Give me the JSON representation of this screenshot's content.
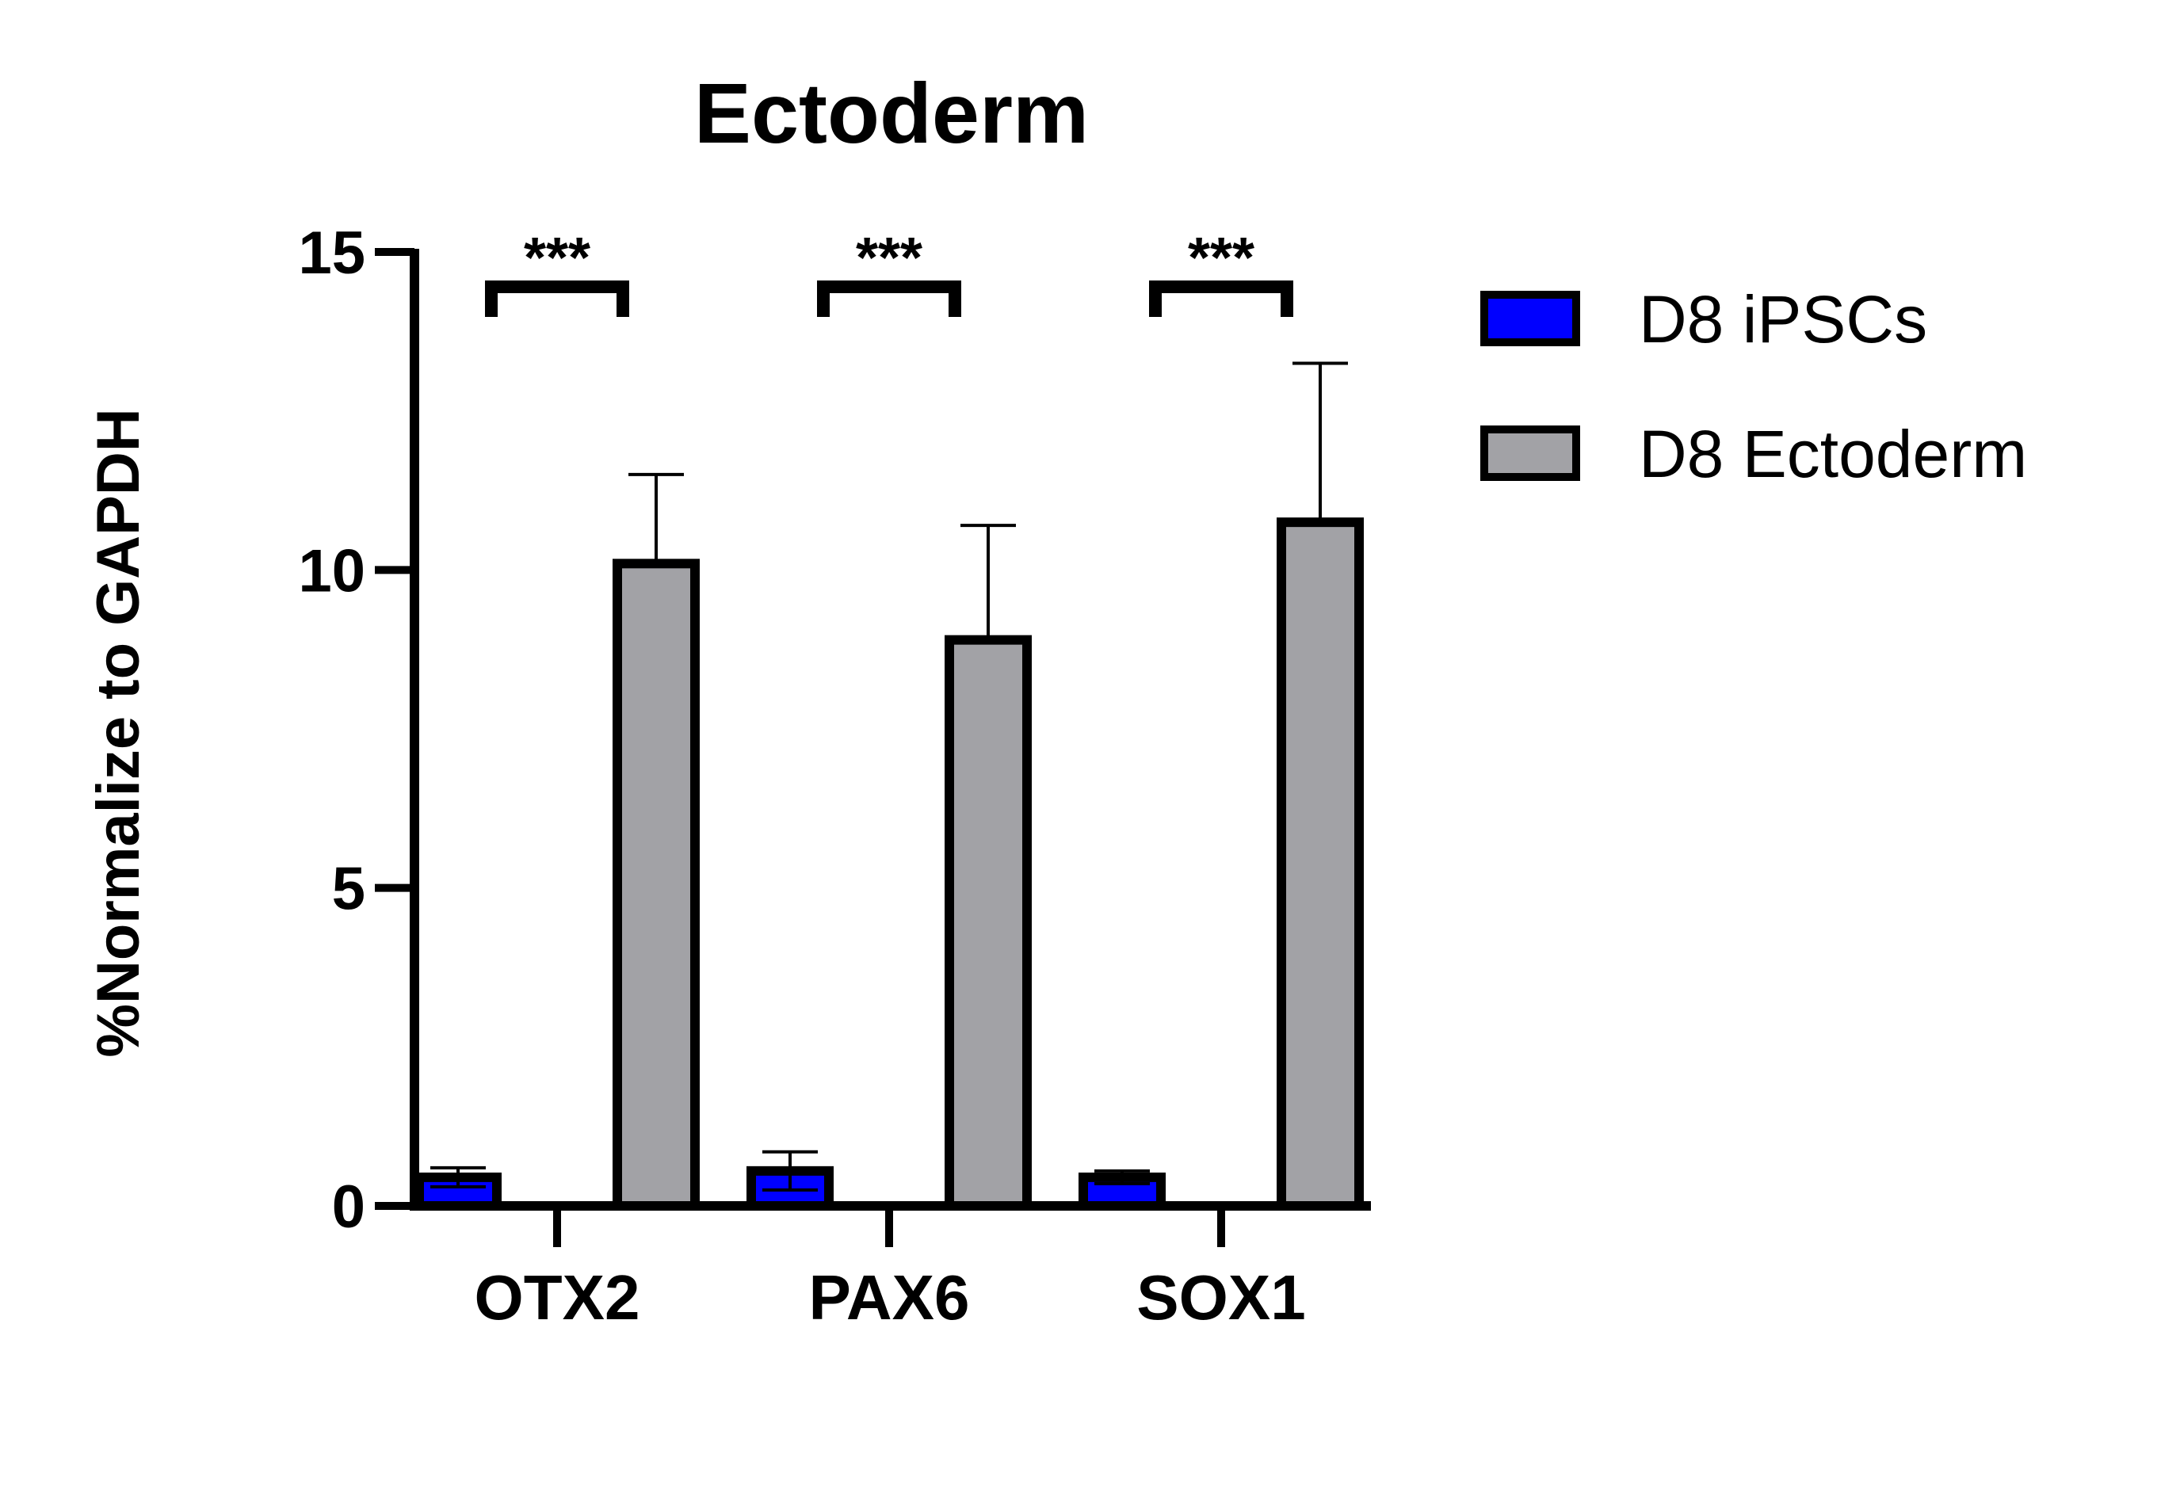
{
  "chart_data": {
    "type": "bar",
    "title": "Ectoderm",
    "xlabel": "",
    "ylabel": "%Normalize to GAPDH",
    "ylim": [
      0,
      15
    ],
    "yticks": [
      "0",
      "5",
      "10",
      "15"
    ],
    "categories": [
      "OTX2",
      "PAX6",
      "SOX1"
    ],
    "series": [
      {
        "name": "D8 iPSCs",
        "color": "#0000ff",
        "values": [
          0.45,
          0.55,
          0.45
        ],
        "errors": [
          0.15,
          0.3,
          0.1
        ]
      },
      {
        "name": "D8 Ectoderm",
        "color": "#a2a2a6",
        "values": [
          10.1,
          8.9,
          10.75
        ],
        "errors": [
          1.4,
          1.8,
          2.5
        ]
      }
    ],
    "significance": [
      "***",
      "***",
      "***"
    ],
    "legend_position": "top-right",
    "grid": false
  }
}
